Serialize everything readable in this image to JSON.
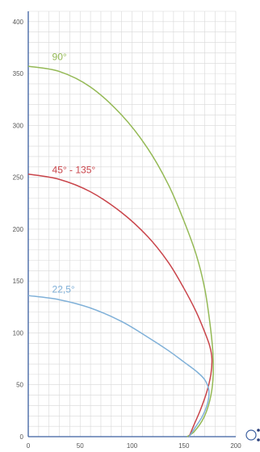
{
  "chart_data": {
    "type": "line",
    "title": "",
    "xlabel": "",
    "ylabel": "",
    "xlim": [
      0,
      200
    ],
    "ylim": [
      0,
      410
    ],
    "x_ticks": [
      "0",
      "50",
      "100",
      "150",
      "200"
    ],
    "y_ticks": [
      "0",
      "50",
      "100",
      "150",
      "200",
      "250",
      "300",
      "350",
      "400"
    ],
    "x_tick_values": [
      0,
      50,
      100,
      150,
      200
    ],
    "y_tick_values": [
      0,
      50,
      100,
      150,
      200,
      250,
      300,
      350,
      400
    ],
    "grid": true,
    "grid_minor_step": 10,
    "legend": "none",
    "series": [
      {
        "name": "90°",
        "color": "#94b955",
        "label_at": [
          23,
          363
        ],
        "points": [
          [
            0,
            357
          ],
          [
            30,
            352
          ],
          [
            60,
            337
          ],
          [
            90,
            310
          ],
          [
            115,
            278
          ],
          [
            135,
            243
          ],
          [
            150,
            208
          ],
          [
            162,
            175
          ],
          [
            170,
            143
          ],
          [
            175,
            110
          ],
          [
            178,
            80
          ],
          [
            178,
            55
          ],
          [
            175,
            35
          ],
          [
            169,
            18
          ],
          [
            160,
            5
          ],
          [
            153,
            0
          ]
        ]
      },
      {
        "name": "45° - 135°",
        "color": "#c9444a",
        "label_at": [
          23,
          254
        ],
        "points": [
          [
            0,
            253
          ],
          [
            30,
            248
          ],
          [
            60,
            236
          ],
          [
            90,
            216
          ],
          [
            115,
            193
          ],
          [
            135,
            168
          ],
          [
            150,
            143
          ],
          [
            162,
            120
          ],
          [
            170,
            101
          ],
          [
            175,
            87
          ],
          [
            177,
            75
          ],
          [
            176,
            60
          ],
          [
            172,
            43
          ],
          [
            166,
            26
          ],
          [
            160,
            12
          ],
          [
            155,
            0
          ]
        ]
      },
      {
        "name": "22,5°",
        "color": "#7fb0d8",
        "label_at": [
          23,
          139
        ],
        "points": [
          [
            0,
            136
          ],
          [
            30,
            132
          ],
          [
            60,
            124
          ],
          [
            90,
            111
          ],
          [
            115,
            96
          ],
          [
            135,
            83
          ],
          [
            150,
            72
          ],
          [
            162,
            63
          ],
          [
            170,
            55
          ],
          [
            174,
            45
          ],
          [
            173,
            33
          ],
          [
            168,
            20
          ],
          [
            161,
            9
          ],
          [
            155,
            0
          ]
        ]
      }
    ]
  },
  "polar_icon": {
    "name": "polar-pattern-icon"
  }
}
